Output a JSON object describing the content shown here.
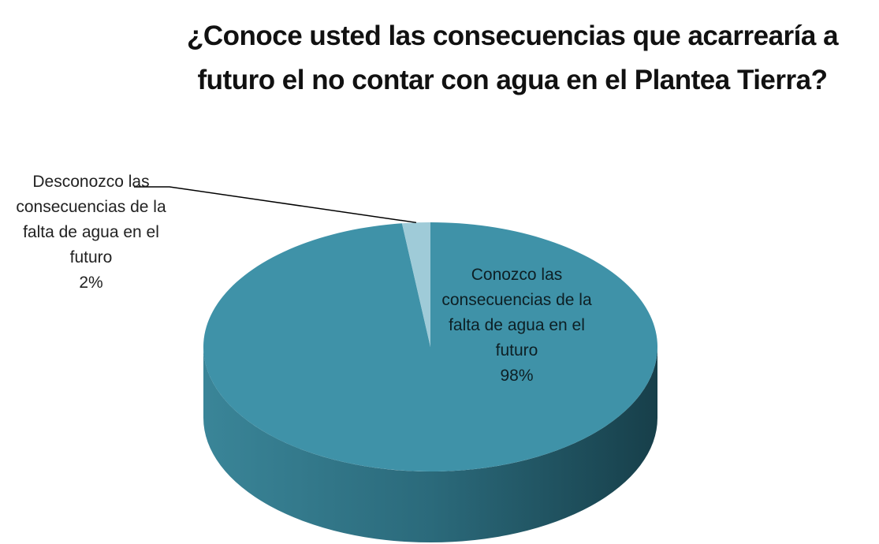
{
  "chart_data": {
    "type": "pie",
    "title": "¿Conoce usted las consecuencias que acarrearía a futuro el no contar con agua en el Plantea Tierra?",
    "categories": [
      "Conozco las consecuencias de la falta de agua en el futuro",
      "Desconozco las consecuencias de la falta de agua en el futuro"
    ],
    "values": [
      98,
      2
    ],
    "value_labels": [
      "98%",
      "2%"
    ],
    "colors": [
      "#3f92a8",
      "#9fcbd8"
    ]
  }
}
